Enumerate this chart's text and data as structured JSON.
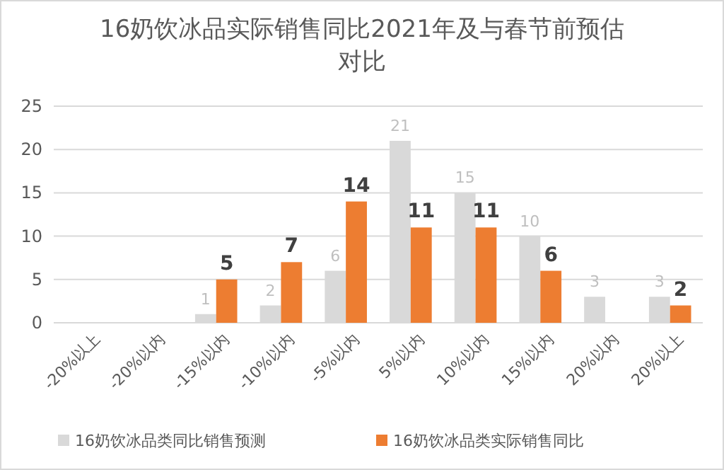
{
  "chart_data": {
    "type": "bar",
    "title": "16奶饮冰品实际销售同比2021年及与春节前预估对比",
    "categories": [
      "-20%以上",
      "-20%以内",
      "-15%以内",
      "-10%以内",
      "-5%以内",
      "5%以内",
      "10%以内",
      "15%以内",
      "20%以内",
      "20%以上"
    ],
    "series": [
      {
        "name": "16奶饮冰品类同比销售预测",
        "color": "#d9d9d9",
        "values": [
          null,
          null,
          1,
          2,
          6,
          21,
          15,
          10,
          3,
          3
        ]
      },
      {
        "name": "16奶饮冰品类实际销售同比",
        "color": "#ed7d31",
        "values": [
          null,
          null,
          5,
          7,
          14,
          11,
          11,
          6,
          null,
          2
        ]
      }
    ],
    "ylim": [
      0,
      25
    ],
    "yticks": [
      0,
      5,
      10,
      15,
      20,
      25
    ],
    "grid": "y",
    "legend": "bottom",
    "data_labels": true
  }
}
